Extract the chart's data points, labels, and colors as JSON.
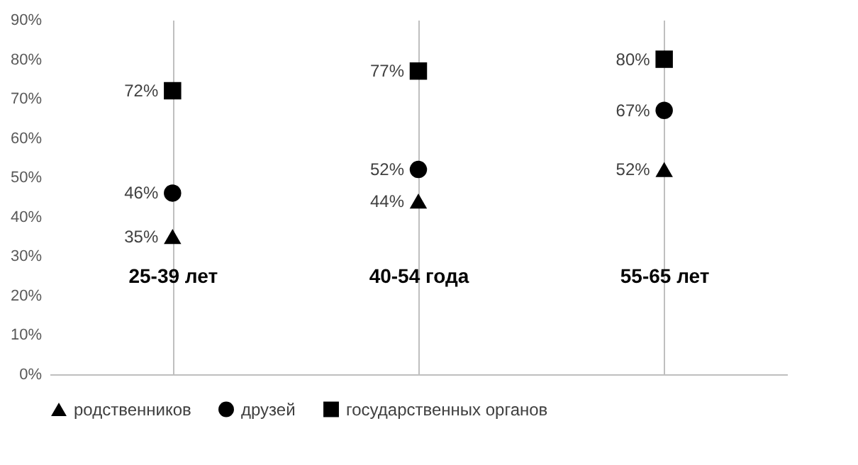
{
  "chart_data": {
    "type": "scatter",
    "categories": [
      "25-39 лет",
      "40-54 года",
      "55-65 лет"
    ],
    "series": [
      {
        "name": "родственников",
        "color": "#000000",
        "marker": "triangle",
        "values": [
          35,
          44,
          52
        ],
        "value_labels": [
          "35%",
          "44%",
          "52%"
        ]
      },
      {
        "name": "друзей",
        "color": "#000000",
        "marker": "circle",
        "values": [
          46,
          52,
          67
        ],
        "value_labels": [
          "46%",
          "52%",
          "67%"
        ]
      },
      {
        "name": "государственных органов",
        "color": "#000000",
        "marker": "square",
        "values": [
          72,
          77,
          80
        ],
        "value_labels": [
          "72%",
          "77%",
          "80%"
        ]
      }
    ],
    "ylim": [
      0,
      90
    ],
    "yticks": [
      {
        "value": 0,
        "label": "0%"
      },
      {
        "value": 10,
        "label": "10%"
      },
      {
        "value": 20,
        "label": "20%"
      },
      {
        "value": 30,
        "label": "30%"
      },
      {
        "value": 40,
        "label": "40%"
      },
      {
        "value": 50,
        "label": "50%"
      },
      {
        "value": 60,
        "label": "60%"
      },
      {
        "value": 70,
        "label": "70%"
      },
      {
        "value": 80,
        "label": "80%"
      },
      {
        "value": 90,
        "label": "90%"
      }
    ],
    "grid": "x",
    "legend": "bottom"
  }
}
